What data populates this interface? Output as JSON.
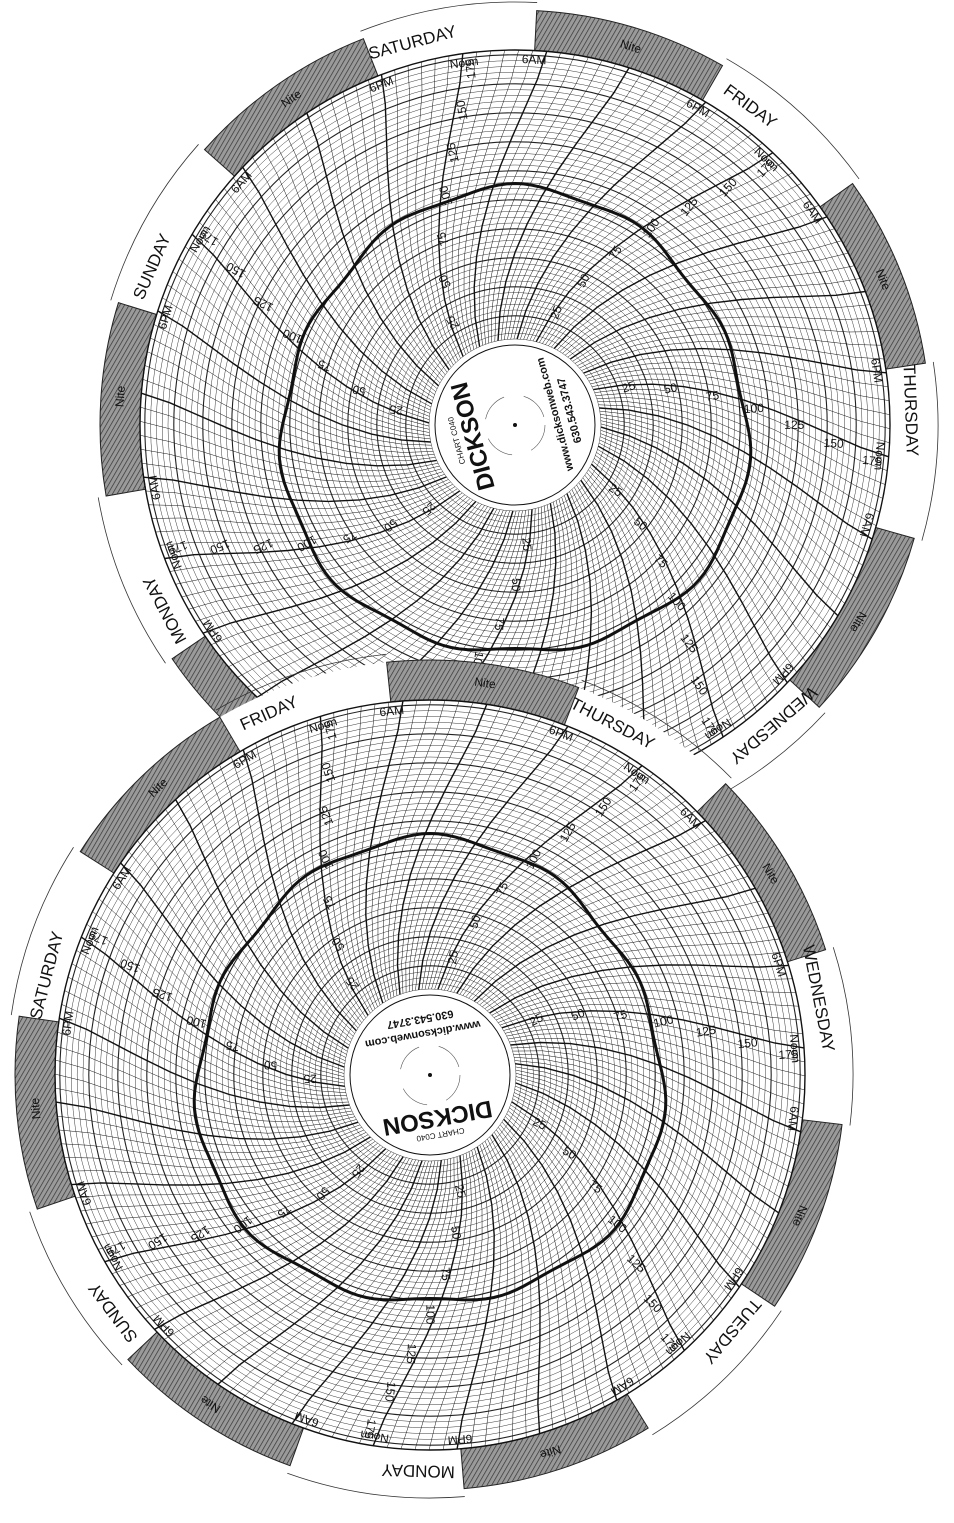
{
  "charts": [
    {
      "days": [
        "SATURDAY",
        "FRIDAY",
        "THURSDAY",
        "WEDNESDAY",
        "MONDAY",
        "SUNDAY"
      ],
      "time_labels": {
        "noon": "Noon",
        "morning": "6AM",
        "night": "Nite",
        "evening": "6PM"
      },
      "scale_labels": [
        "25",
        "50",
        "75",
        "100",
        "125",
        "150",
        "175"
      ],
      "brand": "DICKSON",
      "model": "CHART C040",
      "website": "www.dicksonweb.com",
      "phone": "630.543.3747"
    },
    {
      "days": [
        "FRIDAY",
        "THURSDAY",
        "WEDNESDAY",
        "TUESDAY",
        "MONDAY",
        "SUNDAY",
        "SATURDAY"
      ],
      "time_labels": {
        "noon": "Noon",
        "morning": "6AM",
        "night": "Nite",
        "evening": "6PM"
      },
      "scale_labels": [
        "25",
        "50",
        "75",
        "100",
        "125",
        "150",
        "175"
      ],
      "brand": "DICKSON",
      "model": "CHART C040",
      "website": "www.dicksonweb.com",
      "phone": "630.543.3747"
    }
  ]
}
